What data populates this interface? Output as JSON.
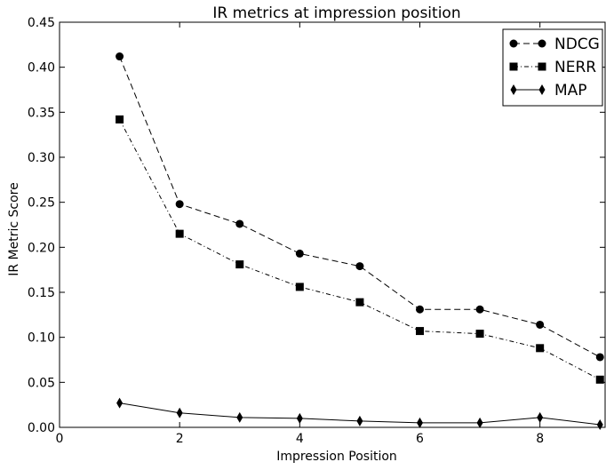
{
  "chart_data": {
    "type": "line",
    "title": "IR metrics at impression position",
    "xlabel": "Impression Position",
    "ylabel": "IR Metric Score",
    "xlim": [
      0,
      9.1
    ],
    "ylim": [
      0,
      0.45
    ],
    "x_ticks": [
      "0",
      "2",
      "4",
      "6",
      "8"
    ],
    "x_tick_values": [
      0,
      2,
      4,
      6,
      8
    ],
    "y_ticks": [
      "0.00",
      "0.05",
      "0.10",
      "0.15",
      "0.20",
      "0.25",
      "0.30",
      "0.35",
      "0.40",
      "0.45"
    ],
    "y_tick_values": [
      0,
      0.05,
      0.1,
      0.15,
      0.2,
      0.25,
      0.3,
      0.35,
      0.4,
      0.45
    ],
    "grid": false,
    "legend_position": "top-right",
    "x": [
      1,
      2,
      3,
      4,
      5,
      6,
      7,
      8,
      9
    ],
    "series": [
      {
        "name": "NDCG",
        "marker": "circle",
        "line_style": "dashed",
        "color": "#000000",
        "values": [
          0.412,
          0.248,
          0.226,
          0.193,
          0.179,
          0.131,
          0.131,
          0.114,
          0.078
        ]
      },
      {
        "name": "NERR",
        "marker": "square",
        "line_style": "dash-dot",
        "color": "#000000",
        "values": [
          0.342,
          0.215,
          0.181,
          0.156,
          0.139,
          0.107,
          0.104,
          0.088,
          0.053
        ]
      },
      {
        "name": "MAP",
        "marker": "diamond",
        "line_style": "solid",
        "color": "#000000",
        "values": [
          0.027,
          0.016,
          0.011,
          0.01,
          0.007,
          0.005,
          0.005,
          0.011,
          0.003
        ]
      }
    ]
  }
}
